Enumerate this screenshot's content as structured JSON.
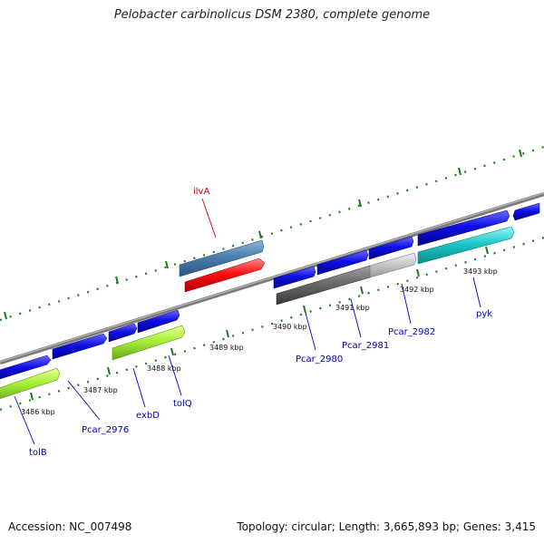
{
  "title": "Pelobacter carbinolicus DSM 2380, complete genome",
  "footer": {
    "accession": "Accession: NC_007498",
    "summary": "Topology: circular; Length: 3,665,893 bp; Genes: 3,415"
  },
  "colors": {
    "backbone": "#808080",
    "tick": "#1e7a1e",
    "forward_gene": "#1010e0",
    "reverse_gene": "#1010e0",
    "label_blue": "#0000aa",
    "label_red": "#cc0000"
  },
  "kbp_labels": [
    "3486 kbp",
    "3487 kbp",
    "3488 kbp",
    "3489 kbp",
    "3490 kbp",
    "3491 kbp",
    "3492 kbp",
    "3493 kbp"
  ],
  "gene_labels": [
    {
      "id": "tolB",
      "text": "tolB",
      "color": "#0000aa"
    },
    {
      "id": "pcar2976",
      "text": "Pcar_2976",
      "color": "#0000aa"
    },
    {
      "id": "exbD",
      "text": "exbD",
      "color": "#0000aa"
    },
    {
      "id": "tolQ",
      "text": "tolQ",
      "color": "#0000aa"
    },
    {
      "id": "pcar2980",
      "text": "Pcar_2980",
      "color": "#0000aa"
    },
    {
      "id": "pcar2981",
      "text": "Pcar_2981",
      "color": "#0000aa"
    },
    {
      "id": "pcar2982",
      "text": "Pcar_2982",
      "color": "#0000aa"
    },
    {
      "id": "pyk",
      "text": "pyk",
      "color": "#0000aa"
    },
    {
      "id": "ilvA",
      "text": "ilvA",
      "color": "#cc0000"
    }
  ]
}
